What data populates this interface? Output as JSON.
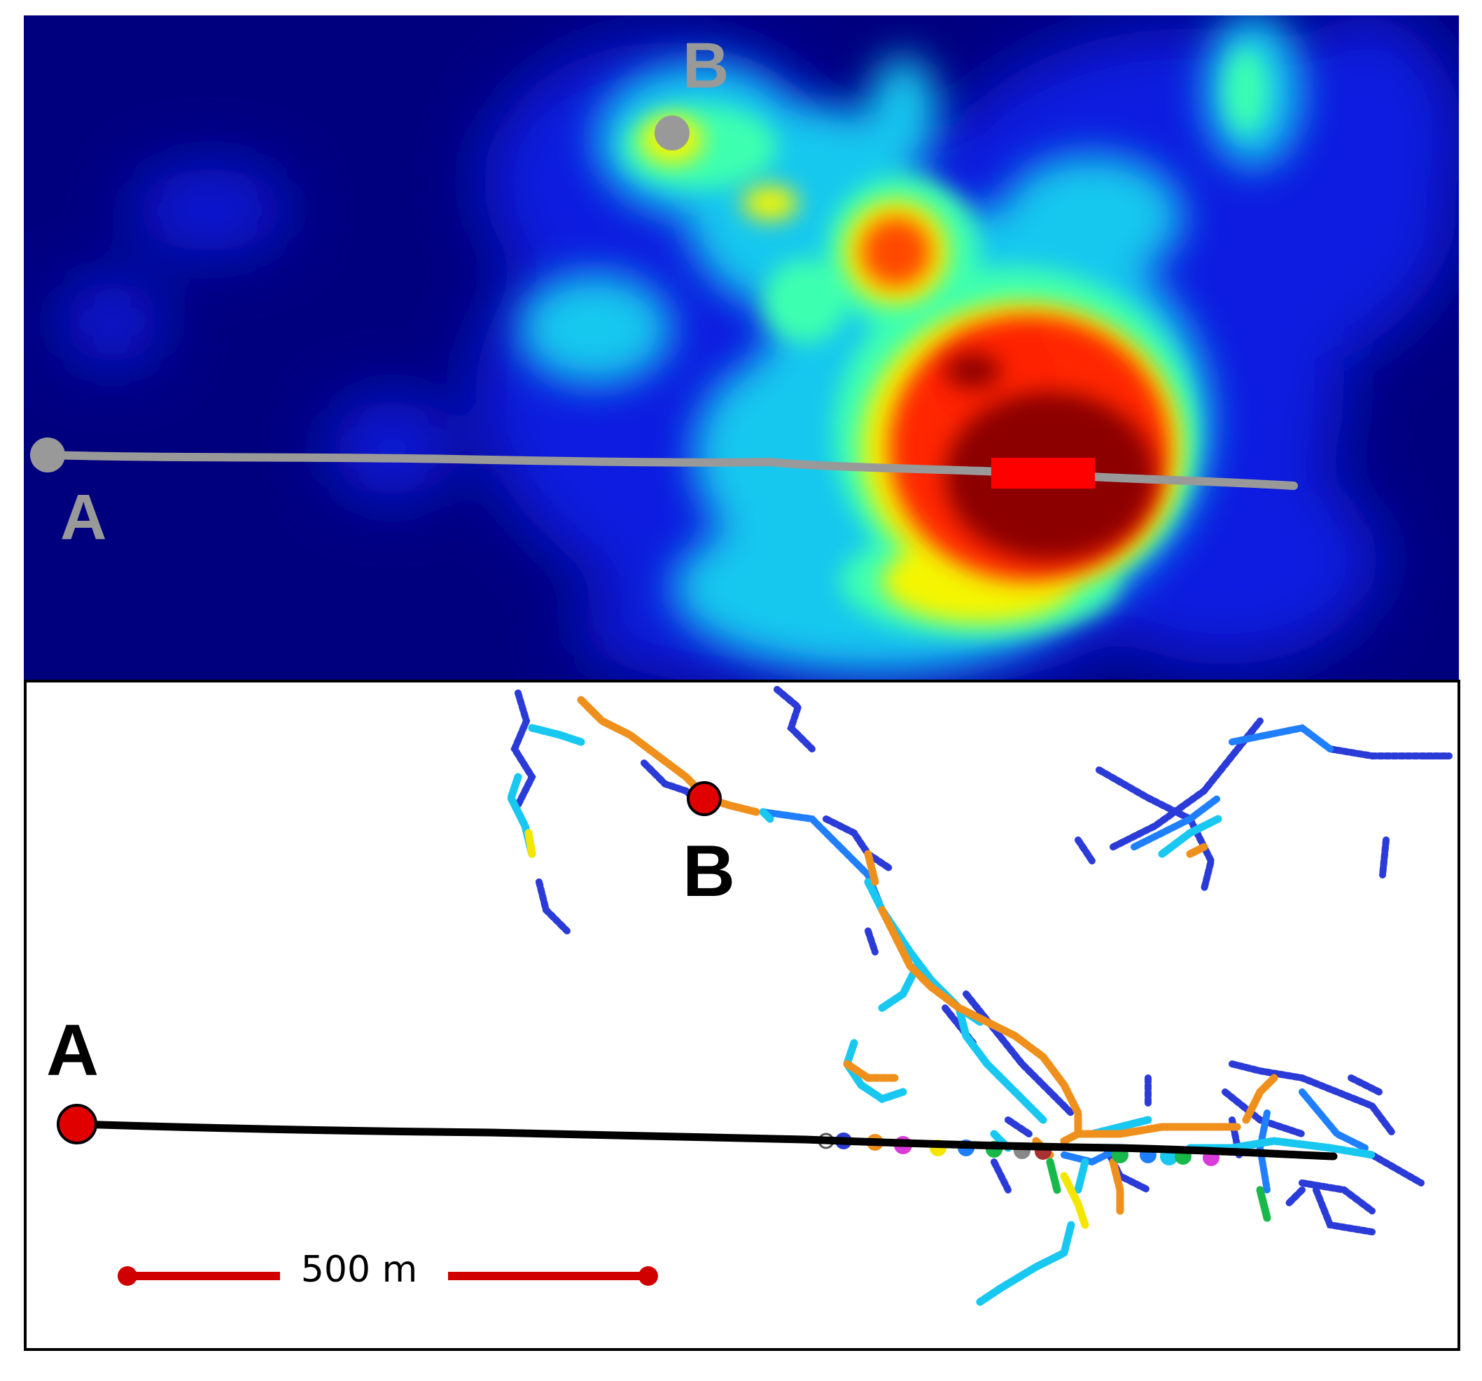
{
  "figure": {
    "top_panel": {
      "label_a": "A",
      "label_b": "B",
      "marker_color": "#999999",
      "route_color": "#999999",
      "highlight_color": "#ff0000",
      "colormap": [
        "#00007f",
        "#0000ff",
        "#00c0ff",
        "#3fffbf",
        "#ffff00",
        "#ff8000",
        "#ff0000",
        "#8b0000"
      ]
    },
    "bottom_panel": {
      "label_a": "A",
      "label_b": "B",
      "marker_color": "#e00000",
      "route_color": "#000000",
      "scale_bar": {
        "label": "500 m",
        "color": "#d00000"
      },
      "trace_colors": [
        "#2b3bd8",
        "#1f7fff",
        "#18c8f0",
        "#f0901c",
        "#f5e600",
        "#19b84a",
        "#d93cd9"
      ]
    }
  }
}
